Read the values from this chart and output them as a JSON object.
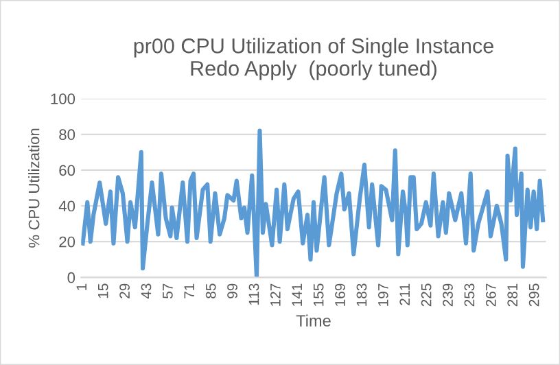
{
  "chart_data": {
    "type": "line",
    "title": "pr00 CPU Utilization of Single Instance\nRedo Apply  (poorly tuned)",
    "xlabel": "Time",
    "ylabel": "% CPU Utilization",
    "series": [
      {
        "color": "#5b9bd5",
        "x": [
          1,
          4,
          6,
          8,
          12,
          16,
          19,
          21,
          24,
          27,
          30,
          32,
          35,
          39,
          40,
          43,
          46,
          50,
          52,
          55,
          58,
          59,
          62,
          66,
          69,
          71,
          73,
          75,
          79,
          82,
          84,
          87,
          90,
          93,
          95,
          99,
          101,
          104,
          106,
          108,
          111,
          114,
          116,
          118,
          120,
          124,
          127,
          129,
          132,
          134,
          138,
          141,
          144,
          147,
          149,
          151,
          153,
          158,
          161,
          166,
          169,
          171,
          174,
          177,
          181,
          184,
          187,
          189,
          193,
          195,
          198,
          202,
          204,
          206,
          209,
          211,
          212,
          214,
          216,
          218,
          221,
          224,
          227,
          229,
          232,
          235,
          237,
          239,
          243,
          247,
          250,
          253,
          255,
          258,
          261,
          264,
          266,
          270,
          273,
          276,
          277,
          279,
          282,
          283,
          286,
          287,
          290,
          292,
          294,
          296,
          298,
          300
        ],
        "values": [
          19,
          42,
          20,
          35,
          53,
          30,
          48,
          19,
          56,
          47,
          20,
          42,
          28,
          70,
          5,
          30,
          53,
          24,
          58,
          33,
          23,
          39,
          22,
          53,
          20,
          54,
          58,
          22,
          49,
          52,
          20,
          47,
          24,
          33,
          46,
          43,
          54,
          33,
          39,
          25,
          57,
          0,
          82,
          25,
          41,
          18,
          49,
          20,
          52,
          27,
          44,
          48,
          19,
          35,
          10,
          42,
          15,
          56,
          18,
          47,
          58,
          38,
          47,
          13,
          44,
          63,
          28,
          52,
          18,
          51,
          49,
          32,
          71,
          13,
          48,
          35,
          18,
          56,
          56,
          27,
          30,
          42,
          29,
          58,
          23,
          42,
          25,
          47,
          32,
          47,
          19,
          58,
          15,
          30,
          39,
          48,
          23,
          40,
          30,
          10,
          68,
          43,
          72,
          35,
          58,
          6,
          49,
          28,
          48,
          27,
          54,
          32
        ]
      }
    ],
    "xlim": [
      0,
      302
    ],
    "xticks": [
      1,
      15,
      29,
      43,
      57,
      71,
      85,
      99,
      113,
      127,
      141,
      155,
      169,
      183,
      197,
      211,
      225,
      239,
      253,
      267,
      281,
      295
    ],
    "ylim": [
      0,
      100
    ],
    "yticks": [
      0,
      20,
      40,
      60,
      80,
      100
    ],
    "grid": "y",
    "legend": false,
    "marker": "none",
    "line_style": "solid"
  }
}
